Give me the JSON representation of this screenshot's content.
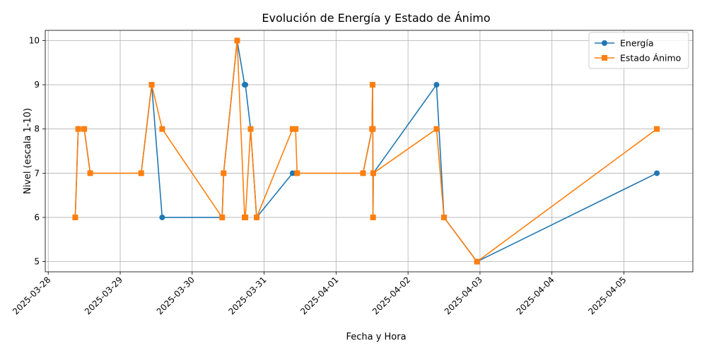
{
  "chart_data": {
    "type": "line",
    "title": "Evolución de Energía y Estado de Ánimo",
    "xlabel": "Fecha y Hora",
    "ylabel": "Nivel (escala 1-10)",
    "xlim": [
      "2025-03-27T23:00",
      "2025-04-05T23:00"
    ],
    "ylim": [
      4.77,
      10.23
    ],
    "grid": true,
    "legend_position": "top-right",
    "x_ticks": [
      "2025-03-28",
      "2025-03-29",
      "2025-03-30",
      "2025-03-31",
      "2025-04-01",
      "2025-04-02",
      "2025-04-03",
      "2025-04-04",
      "2025-04-05"
    ],
    "y_ticks": [
      5,
      6,
      7,
      8,
      9,
      10
    ],
    "x": [
      "2025-03-28T09:00",
      "2025-03-28T10:00",
      "2025-03-28T12:00",
      "2025-03-28T14:00",
      "2025-03-29T07:00",
      "2025-03-29T10:30",
      "2025-03-29T14:00",
      "2025-03-30T10:00",
      "2025-03-30T10:30",
      "2025-03-30T15:00",
      "2025-03-30T17:30",
      "2025-03-30T17:45",
      "2025-03-30T19:30",
      "2025-03-30T21:30",
      "2025-03-31T09:30",
      "2025-03-31T10:30",
      "2025-03-31T11:00",
      "2025-04-01T09:00",
      "2025-04-01T12:00",
      "2025-04-01T12:10",
      "2025-04-01T12:15",
      "2025-04-01T12:20",
      "2025-04-01T12:25",
      "2025-04-02T09:30",
      "2025-04-02T12:00",
      "2025-04-02T23:00",
      "2025-04-05T11:00"
    ],
    "series": [
      {
        "name": "Energía",
        "color": "#1f77b4",
        "marker": "circle",
        "values": [
          6,
          8,
          8,
          7,
          7,
          9,
          6,
          6,
          7,
          10,
          9,
          9,
          8,
          6,
          7,
          7,
          7,
          7,
          8,
          9,
          8,
          6,
          7,
          9,
          6,
          5,
          7
        ]
      },
      {
        "name": "Estado Ánimo",
        "color": "#ff7f0e",
        "marker": "square",
        "values": [
          6,
          8,
          8,
          7,
          7,
          9,
          8,
          6,
          7,
          10,
          6,
          6,
          8,
          6,
          8,
          8,
          7,
          7,
          8,
          9,
          8,
          6,
          7,
          8,
          6,
          5,
          8
        ]
      }
    ]
  }
}
